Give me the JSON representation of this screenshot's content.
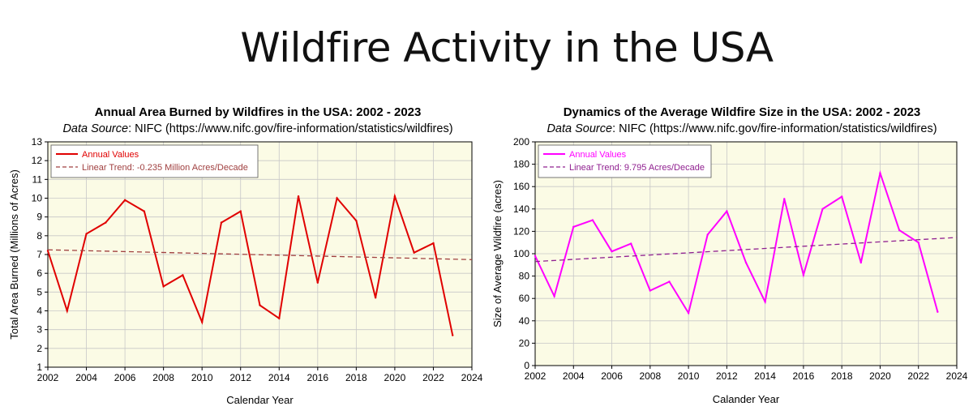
{
  "slide": {
    "title": "Wildfire Activity in the USA"
  },
  "chart_data": [
    {
      "type": "line",
      "title": "Annual Area Burned by Wildfires in the USA: 2002 - 2023",
      "source_label": "Data Source",
      "source_text": ": NIFC (https://www.nifc.gov/fire-information/statistics/wildfires)",
      "xlabel": "Calendar Year",
      "ylabel": "Total Area Burned (Millions of Acres)",
      "xlim": [
        2002,
        2024
      ],
      "ylim": [
        1,
        13
      ],
      "x_ticks": [
        2002,
        2004,
        2006,
        2008,
        2010,
        2012,
        2014,
        2016,
        2018,
        2020,
        2022,
        2024
      ],
      "y_ticks": [
        1,
        2,
        3,
        4,
        5,
        6,
        7,
        8,
        9,
        10,
        11,
        12,
        13
      ],
      "grid": true,
      "legend_position": "top-left",
      "series": [
        {
          "name": "Annual Values",
          "color": "#e00000",
          "style": "solid",
          "x": [
            2002,
            2003,
            2004,
            2005,
            2006,
            2007,
            2008,
            2009,
            2010,
            2011,
            2012,
            2013,
            2014,
            2015,
            2016,
            2017,
            2018,
            2019,
            2020,
            2021,
            2022,
            2023
          ],
          "values": [
            7.2,
            4.0,
            8.1,
            8.7,
            9.9,
            9.3,
            5.3,
            5.9,
            3.4,
            8.7,
            9.3,
            4.3,
            3.6,
            10.1,
            5.5,
            10.0,
            8.8,
            4.7,
            10.1,
            7.1,
            7.6,
            2.7
          ]
        },
        {
          "name": "Linear Trend: -0.235 Million Acres/Decade",
          "color": "#a04040",
          "style": "dashed",
          "x": [
            2002,
            2024
          ],
          "values": [
            7.25,
            6.73
          ]
        }
      ]
    },
    {
      "type": "line",
      "title": "Dynamics of the Average Wildfire Size in the USA: 2002 - 2023",
      "source_label": "Data Source",
      "source_text": ": NIFC (https://www.nifc.gov/fire-information/statistics/wildfires)",
      "xlabel": "Calander Year",
      "ylabel": "Size of Average Wildfire (acres)",
      "xlim": [
        2002,
        2024
      ],
      "ylim": [
        0,
        200
      ],
      "x_ticks": [
        2002,
        2004,
        2006,
        2008,
        2010,
        2012,
        2014,
        2016,
        2018,
        2020,
        2022,
        2024
      ],
      "y_ticks": [
        0,
        20,
        40,
        60,
        80,
        100,
        120,
        140,
        160,
        180,
        200
      ],
      "grid": true,
      "legend_position": "top-left",
      "series": [
        {
          "name": "Annual Values",
          "color": "#ff00ff",
          "style": "solid",
          "x": [
            2002,
            2003,
            2004,
            2005,
            2006,
            2007,
            2008,
            2009,
            2010,
            2011,
            2012,
            2013,
            2014,
            2015,
            2016,
            2017,
            2018,
            2019,
            2020,
            2021,
            2022,
            2023
          ],
          "values": [
            98,
            62,
            124,
            130,
            102,
            109,
            67,
            75,
            47,
            117,
            138,
            92,
            57,
            149,
            81,
            140,
            151,
            92,
            172,
            121,
            110,
            48
          ]
        },
        {
          "name": "Linear Trend: 9.795 Acres/Decade",
          "color": "#902090",
          "style": "dashed",
          "x": [
            2002,
            2024
          ],
          "values": [
            93,
            114.5
          ]
        }
      ]
    }
  ]
}
